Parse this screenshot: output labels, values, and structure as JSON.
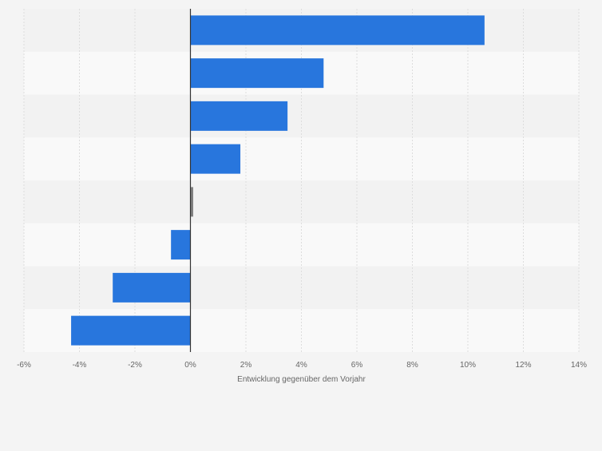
{
  "chart_data": {
    "type": "bar",
    "orientation": "horizontal",
    "title": "",
    "xlabel": "Entwicklung gegenüber dem Vorjahr",
    "ylabel": "",
    "xlim": [
      -6,
      14
    ],
    "x_ticks": [
      -6,
      -4,
      -2,
      0,
      2,
      4,
      6,
      8,
      10,
      12,
      14
    ],
    "x_tick_labels": [
      "-6%",
      "-4%",
      "-2%",
      "0%",
      "2%",
      "4%",
      "6%",
      "8%",
      "10%",
      "12%",
      "14%"
    ],
    "categories": [
      "",
      "",
      "",
      "",
      "",
      "",
      "",
      ""
    ],
    "values": [
      10.6,
      4.8,
      3.5,
      1.8,
      0.1,
      -0.7,
      -2.8,
      -4.3
    ],
    "grid": true,
    "colors": {
      "bar": "#2876dd",
      "bar_neutral": "#7f7f7f",
      "band_dark": "#f2f2f2",
      "band_light": "#f9f9f9",
      "grid": "#dddddd",
      "zero_line": "#333333",
      "tick_text": "#666666"
    }
  }
}
